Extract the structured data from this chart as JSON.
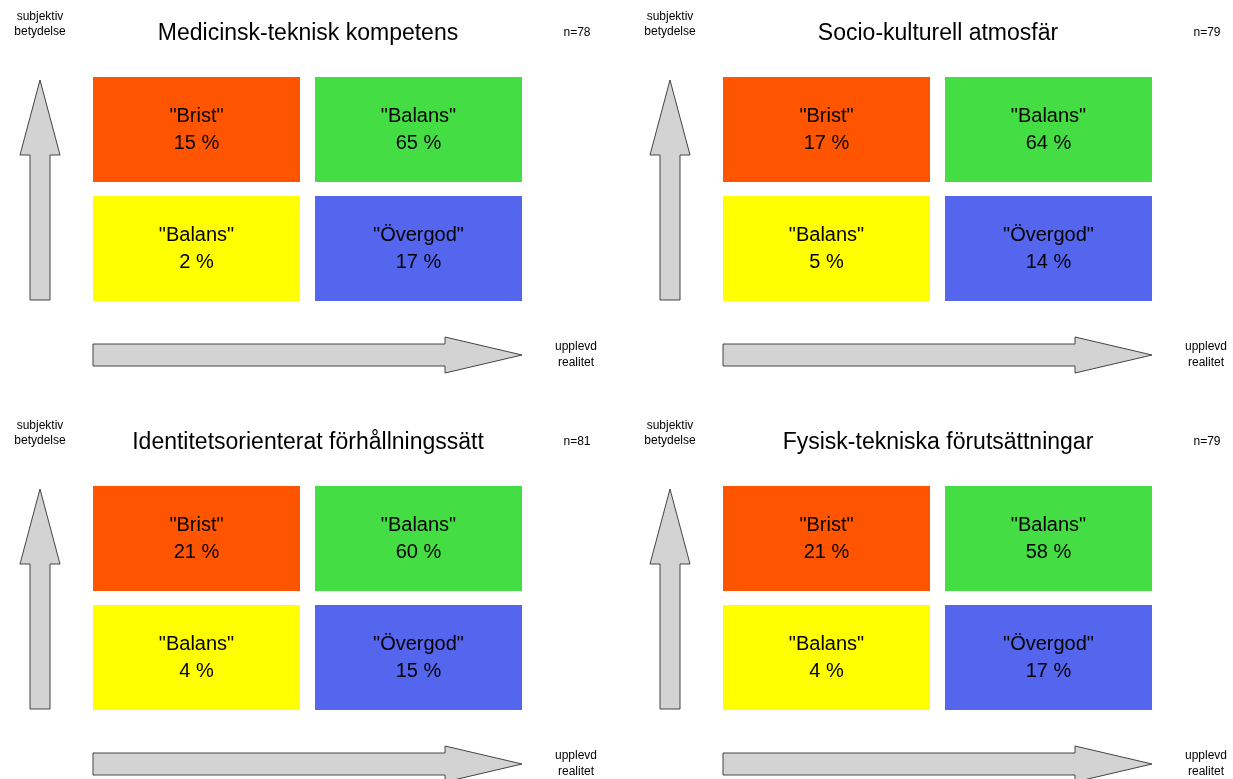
{
  "chart_data": [
    {
      "type": "other",
      "title": "Medicinsk-teknisk kompetens",
      "ylabel": "subjektiv betydelse",
      "xlabel": "upplevd realitet",
      "annotations": [
        "n=78"
      ],
      "categories": [
        "\"Brist\"",
        "\"Balans\"",
        "\"Balans\"",
        "\"Övergod\""
      ],
      "values": [
        15,
        65,
        2,
        17
      ],
      "value_labels": [
        "15 %",
        "65 %",
        "2 %",
        "17 %"
      ],
      "colors": [
        "#ff5500",
        "#44dd44",
        "#ffff00",
        "#5566ee"
      ]
    },
    {
      "type": "other",
      "title": "Socio-kulturell atmosfär",
      "ylabel": "subjektiv betydelse",
      "xlabel": "upplevd realitet",
      "annotations": [
        "n=79"
      ],
      "categories": [
        "\"Brist\"",
        "\"Balans\"",
        "\"Balans\"",
        "\"Övergod\""
      ],
      "values": [
        17,
        64,
        5,
        14
      ],
      "value_labels": [
        "17 %",
        "64 %",
        "5 %",
        "14 %"
      ],
      "colors": [
        "#ff5500",
        "#44dd44",
        "#ffff00",
        "#5566ee"
      ]
    },
    {
      "type": "other",
      "title": "Identitetsorienterat förhållningssätt",
      "ylabel": "subjektiv betydelse",
      "xlabel": "upplevd realitet",
      "annotations": [
        "n=81"
      ],
      "categories": [
        "\"Brist\"",
        "\"Balans\"",
        "\"Balans\"",
        "\"Övergod\""
      ],
      "values": [
        21,
        60,
        4,
        15
      ],
      "value_labels": [
        "21 %",
        "60 %",
        "4 %",
        "15 %"
      ],
      "colors": [
        "#ff5500",
        "#44dd44",
        "#ffff00",
        "#5566ee"
      ]
    },
    {
      "type": "other",
      "title": "Fysisk-tekniska förutsättningar",
      "ylabel": "subjektiv betydelse",
      "xlabel": "upplevd realitet",
      "annotations": [
        "n=79"
      ],
      "categories": [
        "\"Brist\"",
        "\"Balans\"",
        "\"Balans\"",
        "\"Övergod\""
      ],
      "values": [
        21,
        58,
        4,
        17
      ],
      "value_labels": [
        "21 %",
        "58 %",
        "4 %",
        "17 %"
      ],
      "colors": [
        "#ff5500",
        "#44dd44",
        "#ffff00",
        "#5566ee"
      ]
    }
  ]
}
